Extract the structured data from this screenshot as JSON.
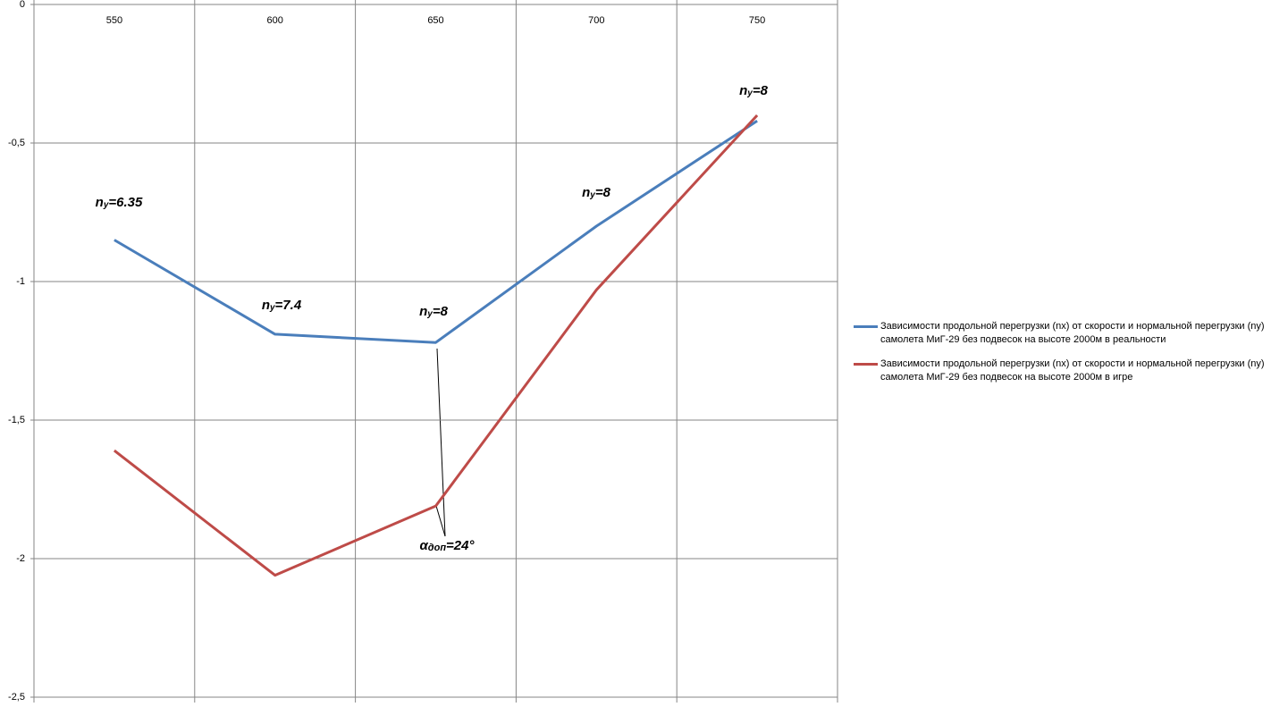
{
  "chart_data": {
    "type": "line",
    "categories": [
      550,
      600,
      650,
      700,
      750
    ],
    "series": [
      {
        "name": "Зависимости продольной перегрузки (nx) от  скорости и нормальной перегрузки (ny) самолета МиГ-29 без подвесок  на высоте 2000м в  реальности",
        "color": "#4a7ebb",
        "values": [
          -0.85,
          -1.19,
          -1.22,
          -0.8,
          -0.42
        ]
      },
      {
        "name": "Зависимости продольной перегрузки (nx) от  скорости и нормальной перегрузки (ny) самолета МиГ-29 без подвесок  на высоте 2000м в  игре",
        "color": "#be4b48",
        "values": [
          -1.61,
          -2.06,
          -1.81,
          -1.03,
          -0.4
        ]
      }
    ],
    "ylim": [
      -2.5,
      0
    ],
    "yticks": [
      0,
      {
        "value": -0.5,
        "label": "-0,5"
      },
      {
        "value": -1,
        "label": "-1"
      },
      {
        "value": -1.5,
        "label": "-1,5"
      },
      {
        "value": -2,
        "label": "-2"
      },
      {
        "value": -2.5,
        "label": "-2,5"
      }
    ],
    "grid": true,
    "legend": "right",
    "annotations": [
      {
        "parts": [
          "n",
          "y",
          "=6.35"
        ]
      },
      {
        "parts": [
          "n",
          "y",
          "=7.4"
        ]
      },
      {
        "parts": [
          "n",
          "y",
          "=8"
        ]
      },
      {
        "parts": [
          "n",
          "y",
          "=8"
        ]
      },
      {
        "parts": [
          "n",
          "y",
          "=8"
        ]
      },
      {
        "parts": [
          "α",
          "доп",
          "=24°"
        ]
      }
    ]
  }
}
